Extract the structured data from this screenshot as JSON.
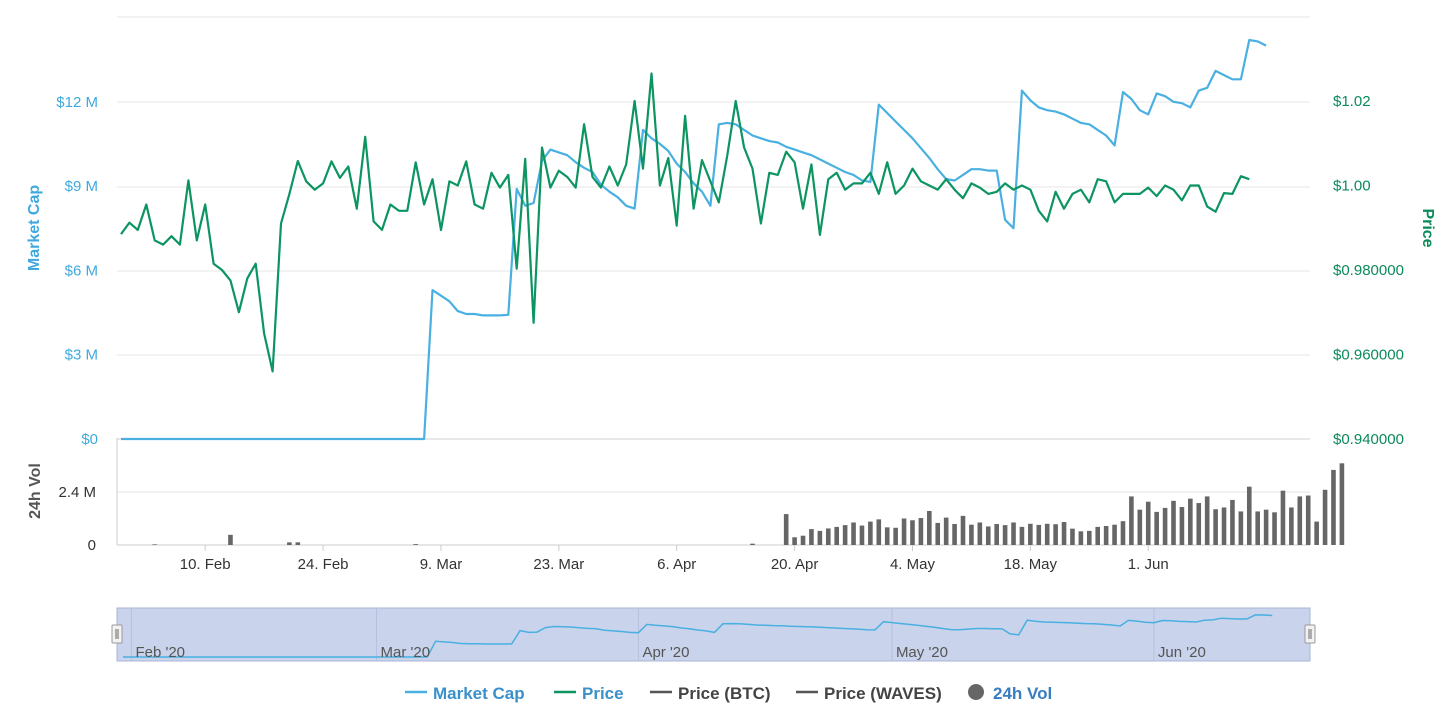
{
  "colors": {
    "market_cap": "#49b0e1",
    "price": "#0c9461",
    "price_btc": "#555555",
    "price_waves": "#555555",
    "volume": "#666666",
    "navigator_fill": "#c9d3ec",
    "grid": "#e6e6e6",
    "vol_legend": "#3a7cc0"
  },
  "chart_data": {
    "type": "line",
    "x_ticks": [
      "10. Feb",
      "24. Feb",
      "9. Mar",
      "23. Mar",
      "6. Apr",
      "20. Apr",
      "4. May",
      "18. May",
      "1. Jun"
    ],
    "y_left": {
      "title": "Market Cap",
      "ticks": [
        "$0",
        "$3 M",
        "$6 M",
        "$9 M",
        "$12 M"
      ],
      "range": [
        0,
        15000000
      ]
    },
    "y_right": {
      "title": "Price",
      "ticks": [
        "$0.940000",
        "$0.960000",
        "$0.980000",
        "$1.00",
        "$1.02"
      ],
      "range": [
        0.94,
        1.04
      ]
    },
    "y_volume": {
      "title": "24h Vol",
      "ticks": [
        "0",
        "2.4 M"
      ],
      "range": [
        0,
        3600000
      ]
    },
    "series": [
      {
        "name": "Market Cap",
        "type": "line",
        "x_start": "2020-01-31",
        "step_days": 1,
        "values": [
          0,
          0,
          0,
          0,
          0,
          0,
          0,
          0,
          0,
          0,
          0,
          0,
          0,
          0,
          0,
          0,
          0,
          0,
          0,
          0,
          0,
          0,
          0,
          0,
          0,
          0,
          0,
          0,
          0,
          0,
          0,
          0,
          0,
          0,
          0,
          0,
          0,
          5300000,
          5100000,
          4900000,
          4550000,
          4450000,
          4450000,
          4400000,
          4400000,
          4400000,
          4420000,
          8900000,
          8300000,
          8400000,
          9900000,
          10300000,
          10200000,
          10100000,
          9850000,
          9650000,
          9500000,
          9050000,
          8800000,
          8600000,
          8300000,
          8200000,
          11000000,
          10700000,
          10500000,
          10250000,
          9800000,
          9500000,
          9100000,
          8800000,
          8300000,
          11200000,
          11250000,
          11200000,
          11000000,
          10800000,
          10700000,
          10600000,
          10550000,
          10400000,
          10300000,
          10200000,
          10100000,
          9950000,
          9800000,
          9650000,
          9500000,
          9400000,
          9200000,
          9150000,
          11900000,
          11600000,
          11300000,
          11000000,
          10700000,
          10350000,
          10000000,
          9600000,
          9250000,
          9200000,
          9400000,
          9600000,
          9600000,
          9550000,
          9550000,
          7800000,
          7500000,
          12400000,
          12050000,
          11800000,
          11700000,
          11650000,
          11550000,
          11400000,
          11250000,
          11200000,
          11000000,
          10800000,
          10450000,
          12350000,
          12100000,
          11700000,
          11550000,
          12300000,
          12200000,
          12000000,
          11950000,
          11800000,
          12400000,
          12500000,
          13100000,
          12950000,
          12800000,
          12800000,
          14200000,
          14150000,
          14000000
        ]
      },
      {
        "name": "Price",
        "type": "line",
        "x_start": "2020-01-31",
        "step_days": 1,
        "values": [
          0.9885,
          0.9912,
          0.9895,
          0.9955,
          0.987,
          0.986,
          0.988,
          0.986,
          1.0012,
          0.987,
          0.9955,
          0.9815,
          0.98,
          0.9775,
          0.97,
          0.978,
          0.9815,
          0.965,
          0.956,
          0.991,
          0.998,
          1.0058,
          1.001,
          0.999,
          1.0005,
          1.0057,
          1.0018,
          1.0045,
          0.9945,
          1.0115,
          0.9915,
          0.9895,
          0.9955,
          0.994,
          0.994,
          1.0055,
          0.9955,
          1.0015,
          0.9895,
          1.001,
          1.0,
          1.0057,
          0.9955,
          0.9945,
          1.003,
          0.9995,
          1.0025,
          0.9803,
          1.0063,
          0.9675,
          1.009,
          0.9995,
          1.0035,
          1.002,
          0.9995,
          1.0145,
          1.002,
          0.9995,
          1.0045,
          1.0,
          1.005,
          1.02,
          1.004,
          1.0265,
          1.0,
          1.0065,
          0.9905,
          1.0165,
          0.9945,
          1.006,
          1.001,
          0.996,
          1.007,
          1.02,
          1.009,
          1.004,
          0.991,
          1.003,
          1.0025,
          1.008,
          1.0055,
          0.9945,
          1.005,
          0.9883,
          1.0015,
          1.003,
          0.999,
          1.0005,
          1.0005,
          1.003,
          0.998,
          1.0055,
          0.998,
          1.0,
          1.004,
          1.001,
          1.0,
          0.999,
          1.0015,
          0.999,
          0.997,
          1.0005,
          0.9995,
          0.998,
          0.9985,
          1.0005,
          0.999,
          1.0,
          0.999,
          0.994,
          0.9915,
          0.9985,
          0.9945,
          0.998,
          0.999,
          0.996,
          1.0015,
          1.001,
          0.996,
          0.998,
          0.998,
          0.998,
          0.9995,
          0.9975,
          1.0,
          0.999,
          0.9965,
          1.0,
          1.0,
          0.995,
          0.9938,
          0.9982,
          0.998,
          1.0022,
          1.0015
        ]
      },
      {
        "name": "24h Vol",
        "type": "bar",
        "x_start": "2020-01-31",
        "step_days": 1,
        "values": [
          0,
          0,
          0,
          0,
          30000,
          0,
          0,
          0,
          0,
          0,
          0,
          0,
          0,
          460000,
          0,
          0,
          0,
          0,
          0,
          0,
          120000,
          120000,
          0,
          0,
          0,
          0,
          0,
          0,
          0,
          0,
          0,
          0,
          0,
          0,
          0,
          40000,
          0,
          0,
          0,
          0,
          0,
          0,
          0,
          0,
          0,
          0,
          0,
          0,
          0,
          0,
          0,
          0,
          0,
          0,
          0,
          0,
          0,
          0,
          0,
          0,
          0,
          0,
          0,
          0,
          0,
          0,
          0,
          0,
          0,
          0,
          0,
          0,
          0,
          0,
          0,
          60000,
          0,
          0,
          0,
          1400000,
          350000,
          420000,
          720000,
          640000,
          750000,
          820000,
          900000,
          1020000,
          880000,
          1060000,
          1160000,
          800000,
          780000,
          1200000,
          1120000,
          1220000,
          1540000,
          1000000,
          1240000,
          950000,
          1320000,
          920000,
          1020000,
          840000,
          950000,
          900000,
          1020000,
          820000,
          960000,
          910000,
          960000,
          940000,
          1040000,
          740000,
          620000,
          640000,
          820000,
          860000,
          920000,
          1080000,
          2200000,
          1600000,
          1960000,
          1500000,
          1680000,
          2000000,
          1720000,
          2100000,
          1900000,
          2200000,
          1620000,
          1700000,
          2040000,
          1520000,
          2640000,
          1520000,
          1600000,
          1480000,
          2460000,
          1700000,
          2200000,
          2240000,
          1060000,
          2500000,
          3400000,
          3700000
        ]
      }
    ],
    "navigator": {
      "labels": [
        "Feb '20",
        "Mar '20",
        "Apr '20",
        "May '20",
        "Jun '20"
      ]
    },
    "legend": [
      {
        "name": "Market Cap",
        "marker": "line",
        "color": "#49b0e1"
      },
      {
        "name": "Price",
        "marker": "line",
        "color": "#0c9461"
      },
      {
        "name": "Price (BTC)",
        "marker": "line",
        "color": "#555555"
      },
      {
        "name": "Price (WAVES)",
        "marker": "line",
        "color": "#555555"
      },
      {
        "name": "24h Vol",
        "marker": "circle",
        "color": "#666666"
      }
    ],
    "legend_placement": "bottom",
    "grid": true
  }
}
